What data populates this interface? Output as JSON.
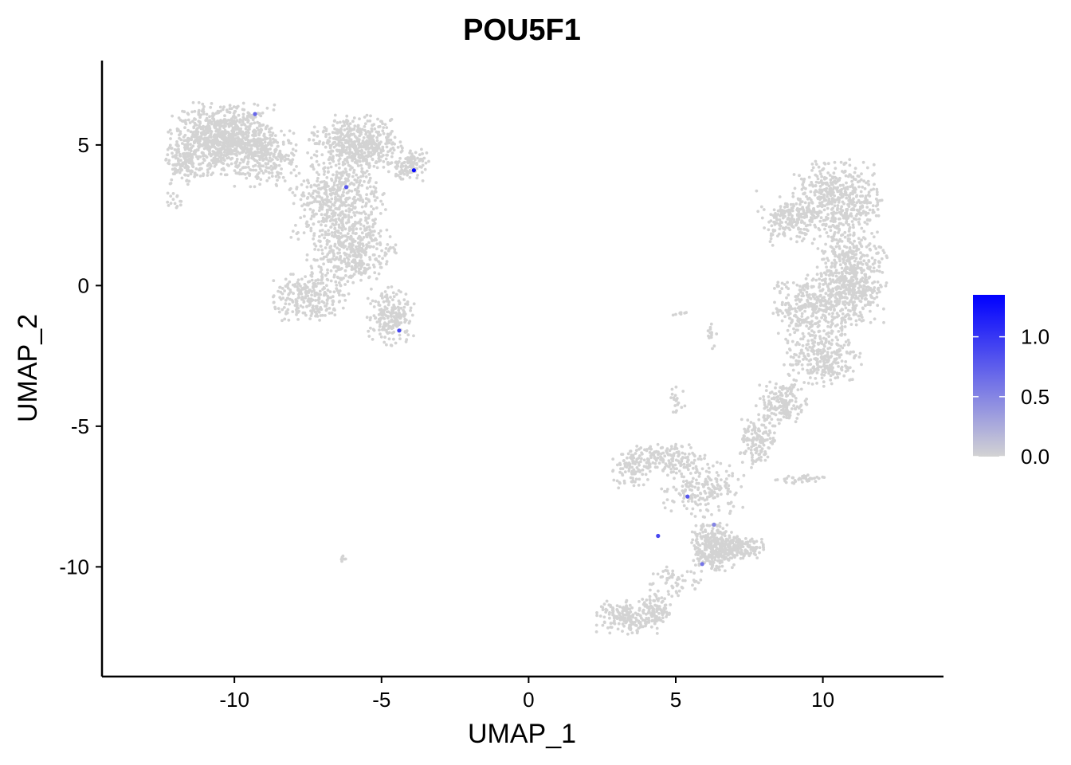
{
  "chart_data": {
    "type": "scatter",
    "title": "POU5F1",
    "xlabel": "UMAP_1",
    "ylabel": "UMAP_2",
    "xlim": [
      -14.5,
      14.1
    ],
    "ylim": [
      -13.9,
      8.0
    ],
    "x_ticks": [
      -10,
      -5,
      0,
      5,
      10
    ],
    "x_tick_labels": [
      "-10",
      "-5",
      "0",
      "5",
      "10"
    ],
    "y_ticks": [
      5,
      0,
      -5,
      -10
    ],
    "y_tick_labels": [
      "5",
      "0",
      "-5",
      "-10"
    ],
    "grid": false,
    "point_color_low": "#d3d3d3",
    "point_color_high": "#0000ff",
    "colorbar": {
      "range": [
        0,
        1.35
      ],
      "ticks": [
        0.0,
        0.5,
        1.0
      ],
      "tick_labels": [
        "0.0",
        "0.5",
        "1.0"
      ],
      "placement": "right"
    },
    "clusters": [
      {
        "cx": -10.4,
        "cy": 5.2,
        "rx": 1.7,
        "ry": 1.2,
        "n": 900
      },
      {
        "cx": -11.7,
        "cy": 4.3,
        "rx": 0.6,
        "ry": 0.7,
        "n": 120
      },
      {
        "cx": -8.9,
        "cy": 4.6,
        "rx": 1.0,
        "ry": 1.0,
        "n": 260
      },
      {
        "cx": -5.9,
        "cy": 5.0,
        "rx": 1.5,
        "ry": 1.0,
        "n": 520
      },
      {
        "cx": -4.0,
        "cy": 4.3,
        "rx": 0.7,
        "ry": 0.6,
        "n": 120
      },
      {
        "cx": -6.5,
        "cy": 3.0,
        "rx": 1.5,
        "ry": 1.3,
        "n": 450
      },
      {
        "cx": -6.0,
        "cy": 1.2,
        "rx": 1.4,
        "ry": 1.2,
        "n": 400
      },
      {
        "cx": -7.4,
        "cy": -0.4,
        "rx": 1.2,
        "ry": 0.8,
        "n": 260
      },
      {
        "cx": -4.7,
        "cy": -1.1,
        "rx": 0.8,
        "ry": 1.0,
        "n": 200
      },
      {
        "cx": -12.0,
        "cy": 3.0,
        "rx": 0.3,
        "ry": 0.3,
        "n": 15
      },
      {
        "cx": 10.5,
        "cy": 3.0,
        "rx": 1.4,
        "ry": 1.4,
        "n": 520
      },
      {
        "cx": 11.0,
        "cy": 0.2,
        "rx": 1.1,
        "ry": 1.6,
        "n": 520
      },
      {
        "cx": 8.8,
        "cy": 2.4,
        "rx": 1.0,
        "ry": 0.9,
        "n": 170
      },
      {
        "cx": 9.6,
        "cy": -0.8,
        "rx": 1.3,
        "ry": 1.2,
        "n": 330
      },
      {
        "cx": 10.0,
        "cy": -2.6,
        "rx": 1.2,
        "ry": 0.9,
        "n": 280
      },
      {
        "cx": 8.6,
        "cy": -4.2,
        "rx": 0.8,
        "ry": 0.8,
        "n": 170
      },
      {
        "cx": 7.8,
        "cy": -5.6,
        "rx": 0.6,
        "ry": 0.8,
        "n": 140
      },
      {
        "cx": 4.6,
        "cy": -6.1,
        "rx": 1.3,
        "ry": 0.5,
        "n": 170
      },
      {
        "cx": 3.5,
        "cy": -6.6,
        "rx": 0.6,
        "ry": 0.6,
        "n": 70
      },
      {
        "cx": 5.9,
        "cy": -7.2,
        "rx": 1.4,
        "ry": 1.0,
        "n": 200
      },
      {
        "cx": 6.3,
        "cy": -9.3,
        "rx": 0.7,
        "ry": 0.8,
        "n": 330
      },
      {
        "cx": 7.3,
        "cy": -9.3,
        "rx": 0.7,
        "ry": 0.4,
        "n": 120
      },
      {
        "cx": 5.0,
        "cy": -10.5,
        "rx": 0.9,
        "ry": 0.6,
        "n": 60
      },
      {
        "cx": 3.4,
        "cy": -11.8,
        "rx": 1.0,
        "ry": 0.6,
        "n": 190
      },
      {
        "cx": 4.4,
        "cy": -11.5,
        "rx": 0.5,
        "ry": 0.5,
        "n": 80
      },
      {
        "cx": 9.2,
        "cy": -6.9,
        "rx": 0.8,
        "ry": 0.15,
        "n": 40
      },
      {
        "cx": 5.0,
        "cy": -4.2,
        "rx": 0.3,
        "ry": 0.6,
        "n": 20
      },
      {
        "cx": 6.2,
        "cy": -1.8,
        "rx": 0.2,
        "ry": 0.5,
        "n": 15
      },
      {
        "cx": 5.2,
        "cy": -1.0,
        "rx": 0.3,
        "ry": 0.1,
        "n": 8
      },
      {
        "cx": -6.3,
        "cy": -9.7,
        "rx": 0.15,
        "ry": 0.1,
        "n": 6
      }
    ],
    "expressing_points": [
      {
        "x": -3.9,
        "y": 4.1,
        "v": 1.3
      },
      {
        "x": -4.4,
        "y": -1.6,
        "v": 0.9
      },
      {
        "x": -6.2,
        "y": 3.5,
        "v": 0.8
      },
      {
        "x": -9.3,
        "y": 6.1,
        "v": 0.7
      },
      {
        "x": 5.4,
        "y": -7.5,
        "v": 0.8
      },
      {
        "x": 4.4,
        "y": -8.9,
        "v": 0.9
      },
      {
        "x": 5.9,
        "y": -9.9,
        "v": 0.6
      },
      {
        "x": 6.3,
        "y": -8.5,
        "v": 0.5
      }
    ]
  }
}
